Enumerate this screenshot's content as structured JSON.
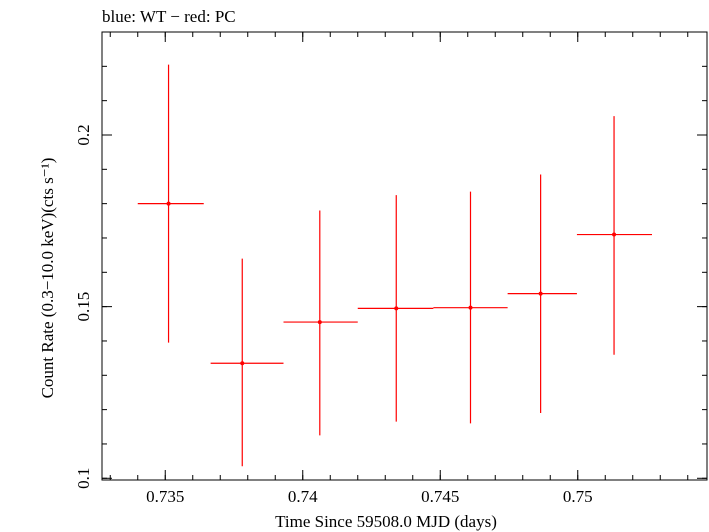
{
  "chart_data": {
    "type": "scatter",
    "title": "blue: WT − red: PC",
    "xlabel": "Time Since 59508.0 MJD (days)",
    "ylabel": "Count Rate (0.3−10.0 keV)(cts s⁻¹)",
    "xlim": [
      0.7327,
      0.7547
    ],
    "ylim": [
      0.0995,
      0.23
    ],
    "x_ticks": [
      {
        "value": 0.735,
        "label": "0.735"
      },
      {
        "value": 0.74,
        "label": "0.74"
      },
      {
        "value": 0.745,
        "label": "0.745"
      },
      {
        "value": 0.75,
        "label": "0.75"
      }
    ],
    "y_ticks": [
      {
        "value": 0.1,
        "label": "0.1"
      },
      {
        "value": 0.15,
        "label": "0.15"
      },
      {
        "value": 0.2,
        "label": "0.2"
      }
    ],
    "grid": false,
    "series": [
      {
        "color": "#ff0000",
        "points": [
          {
            "x": 0.73512,
            "y": 0.18,
            "xlo": 0.734,
            "xhi": 0.7364,
            "ylo": 0.1395,
            "yhi": 0.2205
          },
          {
            "x": 0.7378,
            "y": 0.1335,
            "xlo": 0.73665,
            "xhi": 0.7393,
            "ylo": 0.1035,
            "yhi": 0.164
          },
          {
            "x": 0.74062,
            "y": 0.1455,
            "xlo": 0.7393,
            "xhi": 0.742,
            "ylo": 0.1125,
            "yhi": 0.178
          },
          {
            "x": 0.7434,
            "y": 0.1495,
            "xlo": 0.742,
            "xhi": 0.74475,
            "ylo": 0.1165,
            "yhi": 0.1825
          },
          {
            "x": 0.7461,
            "y": 0.1497,
            "xlo": 0.74475,
            "xhi": 0.74745,
            "ylo": 0.116,
            "yhi": 0.1835
          },
          {
            "x": 0.74865,
            "y": 0.1538,
            "xlo": 0.74745,
            "xhi": 0.74997,
            "ylo": 0.119,
            "yhi": 0.1885
          },
          {
            "x": 0.75132,
            "y": 0.171,
            "xlo": 0.74997,
            "xhi": 0.7527,
            "ylo": 0.136,
            "yhi": 0.2055
          }
        ]
      }
    ]
  }
}
